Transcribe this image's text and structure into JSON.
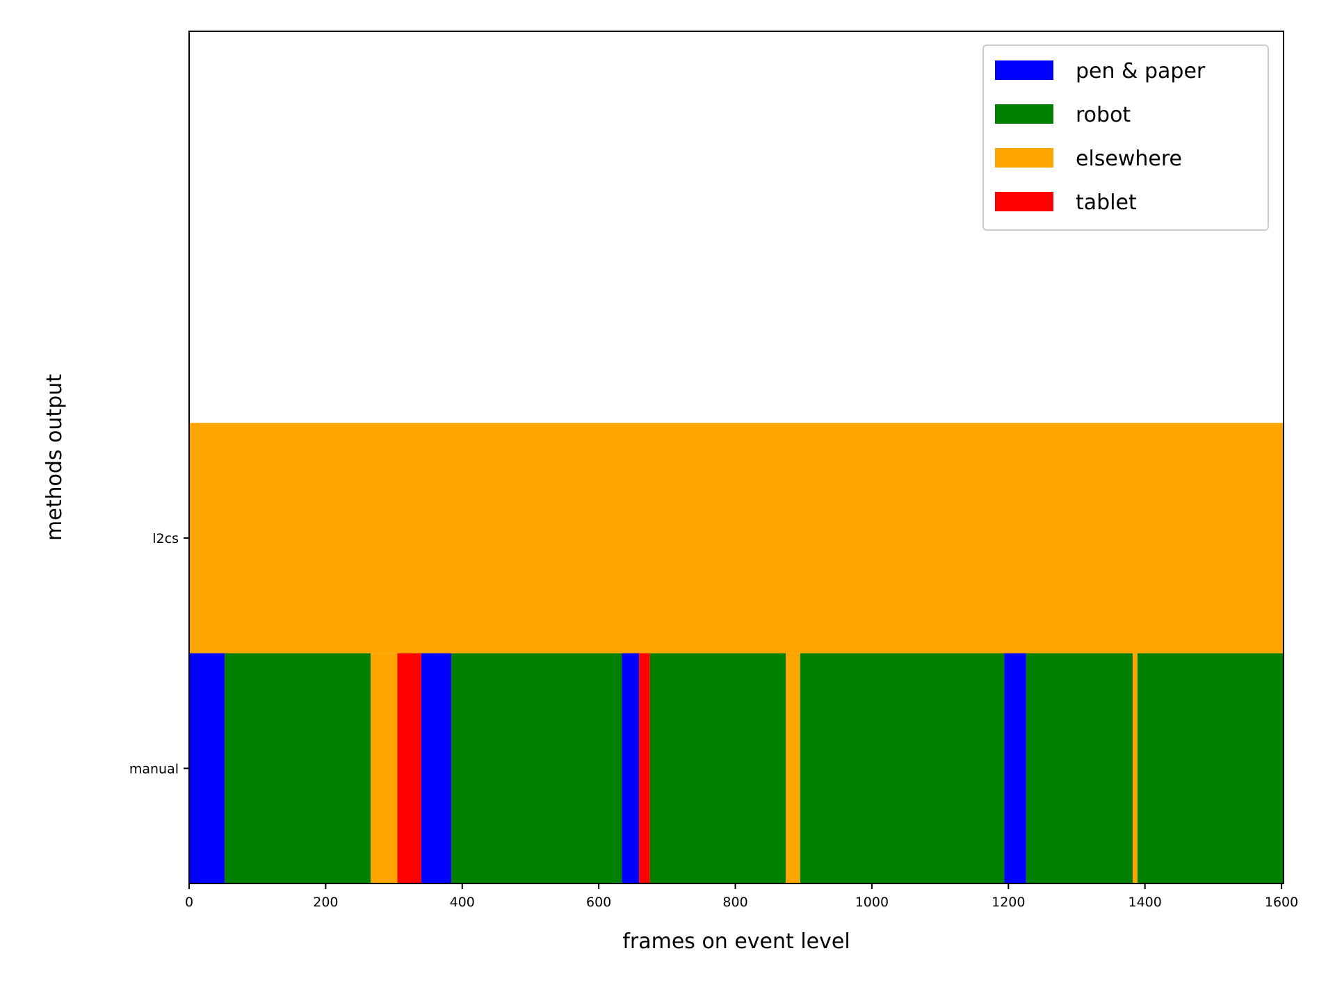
{
  "chart_data": {
    "type": "bar",
    "orientation": "horizontal-timeline",
    "title": "",
    "xlabel": "frames on event level",
    "ylabel": "methods output",
    "xlim": [
      0,
      1600
    ],
    "xticks": [
      0,
      200,
      400,
      600,
      800,
      1000,
      1200,
      1400,
      1600
    ],
    "categories": [
      "manual",
      "l2cs"
    ],
    "colors": {
      "pen & paper": "#0000ff",
      "robot": "#008000",
      "elsewhere": "#ffa500",
      "tablet": "#ff0000"
    },
    "legend": {
      "position": "top-right",
      "entries": [
        "pen & paper",
        "robot",
        "elsewhere",
        "tablet"
      ]
    },
    "series": [
      {
        "category": "manual",
        "segments": [
          {
            "start": 0,
            "end": 52,
            "label": "pen & paper"
          },
          {
            "start": 52,
            "end": 266,
            "label": "robot"
          },
          {
            "start": 266,
            "end": 305,
            "label": "elsewhere"
          },
          {
            "start": 305,
            "end": 340,
            "label": "tablet"
          },
          {
            "start": 340,
            "end": 384,
            "label": "pen & paper"
          },
          {
            "start": 384,
            "end": 634,
            "label": "robot"
          },
          {
            "start": 634,
            "end": 659,
            "label": "pen & paper"
          },
          {
            "start": 659,
            "end": 675,
            "label": "tablet"
          },
          {
            "start": 675,
            "end": 874,
            "label": "robot"
          },
          {
            "start": 874,
            "end": 895,
            "label": "elsewhere"
          },
          {
            "start": 895,
            "end": 1194,
            "label": "robot"
          },
          {
            "start": 1194,
            "end": 1226,
            "label": "pen & paper"
          },
          {
            "start": 1226,
            "end": 1382,
            "label": "robot"
          },
          {
            "start": 1382,
            "end": 1389,
            "label": "elsewhere"
          },
          {
            "start": 1389,
            "end": 1603,
            "label": "robot"
          }
        ]
      },
      {
        "category": "l2cs",
        "segments": [
          {
            "start": 0,
            "end": 1603,
            "label": "elsewhere"
          }
        ]
      }
    ]
  }
}
